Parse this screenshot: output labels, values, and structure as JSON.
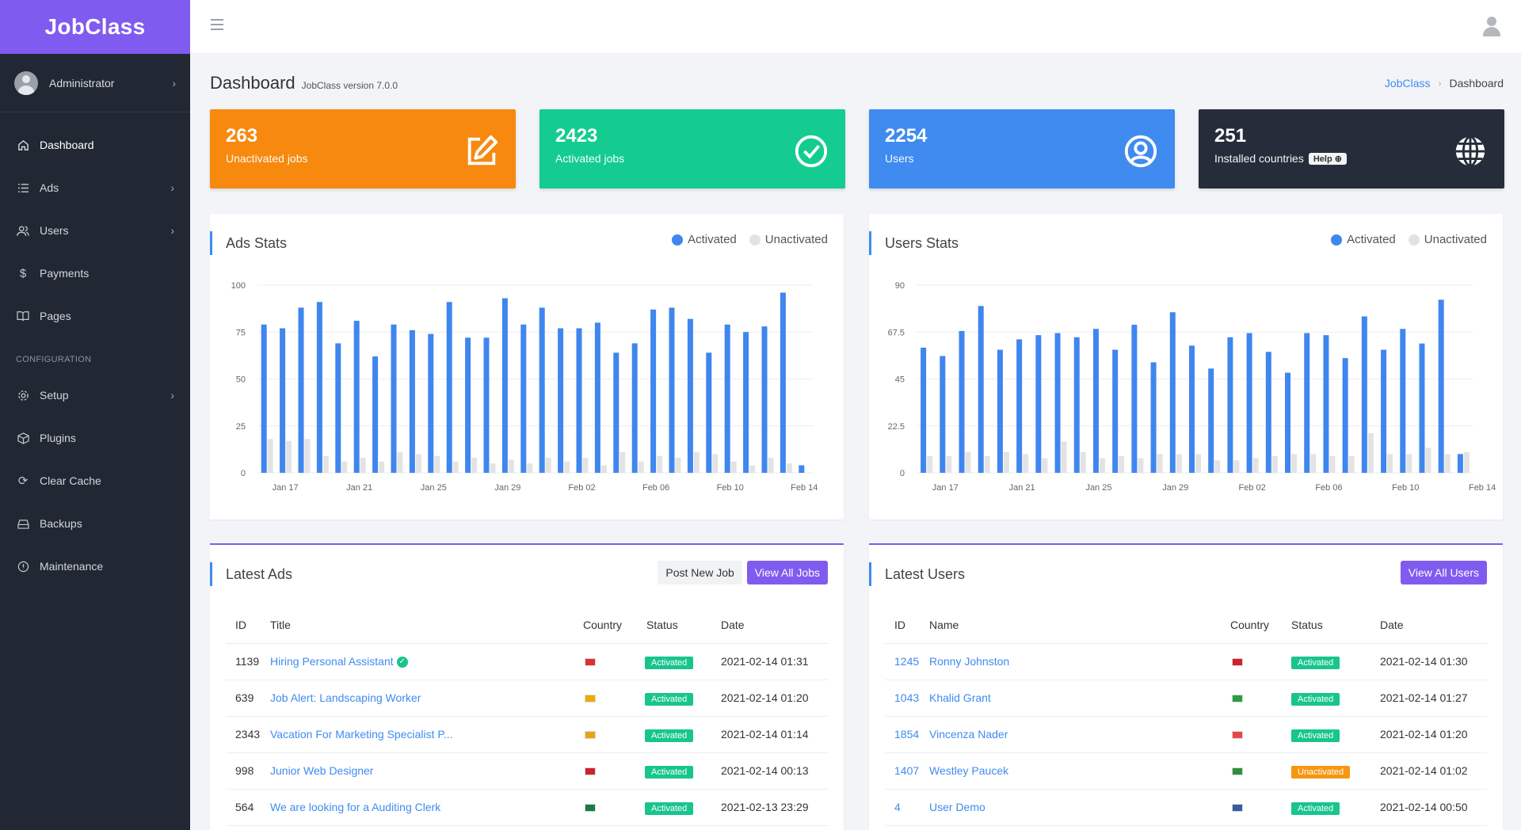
{
  "brand": "JobClass",
  "user": {
    "name": "Administrator"
  },
  "nav": {
    "items": [
      {
        "label": "Dashboard",
        "icon": "home-icon"
      },
      {
        "label": "Ads",
        "icon": "list-icon"
      },
      {
        "label": "Users",
        "icon": "users-icon"
      },
      {
        "label": "Payments",
        "icon": "dollar-icon"
      },
      {
        "label": "Pages",
        "icon": "book-icon"
      }
    ],
    "section": "CONFIGURATION",
    "config_items": [
      {
        "label": "Setup",
        "icon": "gear-icon"
      },
      {
        "label": "Plugins",
        "icon": "box-icon"
      },
      {
        "label": "Clear Cache",
        "icon": "refresh-icon"
      },
      {
        "label": "Backups",
        "icon": "drive-icon"
      },
      {
        "label": "Maintenance",
        "icon": "info-icon"
      }
    ]
  },
  "page": {
    "title": "Dashboard",
    "subtitle": "JobClass version 7.0.0"
  },
  "breadcrumb": {
    "home": "JobClass",
    "current": "Dashboard"
  },
  "stats": [
    {
      "value": "263",
      "label": "Unactivated jobs",
      "color": "#f7890f"
    },
    {
      "value": "2423",
      "label": "Activated jobs",
      "color": "#14cc8f"
    },
    {
      "value": "2254",
      "label": "Users",
      "color": "#3f8bf0"
    },
    {
      "value": "251",
      "label": "Installed countries",
      "color": "#262d3a",
      "help": "Help"
    }
  ],
  "legend": {
    "activated": "Activated",
    "unactivated": "Unactivated"
  },
  "colors": {
    "activated": "#3f86ef",
    "unactivated": "#e3e3e3"
  },
  "chart_data": [
    {
      "type": "bar",
      "title": "Ads Stats",
      "xticks": [
        "Jan 17",
        "Jan 21",
        "Jan 25",
        "Jan 29",
        "Feb 02",
        "Feb 06",
        "Feb 10",
        "Feb 14"
      ],
      "yticks": [
        "100",
        "75",
        "50",
        "25",
        "0"
      ],
      "ylim": [
        0,
        100
      ],
      "series": [
        {
          "name": "Activated",
          "values": [
            79,
            77,
            88,
            91,
            69,
            81,
            62,
            79,
            76,
            74,
            91,
            72,
            72,
            93,
            79,
            88,
            77,
            77,
            80,
            64,
            69,
            87,
            88,
            82,
            64,
            79,
            75,
            78,
            96,
            4
          ]
        },
        {
          "name": "Unactivated",
          "values": [
            18,
            17,
            18,
            9,
            6,
            8,
            6,
            11,
            10,
            9,
            6,
            8,
            5,
            7,
            5,
            8,
            6,
            8,
            4,
            11,
            6,
            9,
            8,
            11,
            10,
            6,
            4,
            8,
            5,
            0
          ]
        }
      ]
    },
    {
      "type": "bar",
      "title": "Users Stats",
      "xticks": [
        "Jan 17",
        "Jan 21",
        "Jan 25",
        "Jan 29",
        "Feb 02",
        "Feb 06",
        "Feb 10",
        "Feb 14"
      ],
      "yticks": [
        "90",
        "67.5",
        "45",
        "22.5",
        "0"
      ],
      "ylim": [
        0,
        90
      ],
      "series": [
        {
          "name": "Activated",
          "values": [
            60,
            56,
            68,
            80,
            59,
            64,
            66,
            67,
            65,
            69,
            59,
            71,
            53,
            77,
            61,
            50,
            65,
            67,
            58,
            48,
            67,
            66,
            55,
            75,
            59,
            69,
            62,
            83,
            9
          ]
        },
        {
          "name": "Unactivated",
          "values": [
            8,
            8,
            10,
            8,
            10,
            9,
            7,
            15,
            10,
            7,
            8,
            7,
            9,
            9,
            9,
            6,
            6,
            7,
            8,
            9,
            9,
            8,
            8,
            19,
            9,
            9,
            12,
            9,
            10
          ]
        }
      ]
    }
  ],
  "latest_ads": {
    "title": "Latest Ads",
    "post_button": "Post New Job",
    "view_button": "View All Jobs",
    "columns": [
      "ID",
      "Title",
      "Country",
      "Status",
      "Date"
    ],
    "rows": [
      {
        "id": "1139",
        "title": "Hiring Personal Assistant",
        "verified": true,
        "flag": "flag-switzerland-icon",
        "flag_color": "#e03131",
        "status": "Activated",
        "date": "2021-02-14 01:31"
      },
      {
        "id": "639",
        "title": "Job Alert: Landscaping Worker",
        "verified": false,
        "flag": "flag-sri-lanka-icon",
        "flag_color": "#f2a900",
        "status": "Activated",
        "date": "2021-02-14 01:20"
      },
      {
        "id": "2343",
        "title": "Vacation For Marketing Specialist P...",
        "verified": false,
        "flag": "flag-spain-icon",
        "flag_color": "#e8a317",
        "status": "Activated",
        "date": "2021-02-14 01:14"
      },
      {
        "id": "998",
        "title": "Junior Web Designer",
        "verified": false,
        "flag": "flag-egypt-icon",
        "flag_color": "#c9252d",
        "status": "Activated",
        "date": "2021-02-14 00:13"
      },
      {
        "id": "564",
        "title": "We are looking for a Auditing Clerk",
        "verified": false,
        "flag": "flag-south-africa-icon",
        "flag_color": "#1c7a43",
        "status": "Activated",
        "date": "2021-02-13 23:29"
      }
    ]
  },
  "latest_users": {
    "title": "Latest Users",
    "view_button": "View All Users",
    "columns": [
      "ID",
      "Name",
      "Country",
      "Status",
      "Date"
    ],
    "rows": [
      {
        "id": "1245",
        "name": "Ronny Johnston",
        "flag": "flag-bahrain-icon",
        "flag_color": "#d1202f",
        "status": "Activated",
        "date": "2021-02-14 01:30"
      },
      {
        "id": "1043",
        "name": "Khalid Grant",
        "flag": "flag-brazil-icon",
        "flag_color": "#2a9d3f",
        "status": "Activated",
        "date": "2021-02-14 01:27"
      },
      {
        "id": "1854",
        "name": "Vincenza Nader",
        "flag": "flag-indonesia-icon",
        "flag_color": "#e5484d",
        "status": "Activated",
        "date": "2021-02-14 01:20"
      },
      {
        "id": "1407",
        "name": "Westley Paucek",
        "flag": "flag-uae-icon",
        "flag_color": "#2f8f3f",
        "status": "Unactivated",
        "date": "2021-02-14 01:02"
      },
      {
        "id": "4",
        "name": "User Demo",
        "flag": "flag-usa-icon",
        "flag_color": "#3a5ba0",
        "status": "Activated",
        "date": "2021-02-14 00:50"
      }
    ]
  }
}
